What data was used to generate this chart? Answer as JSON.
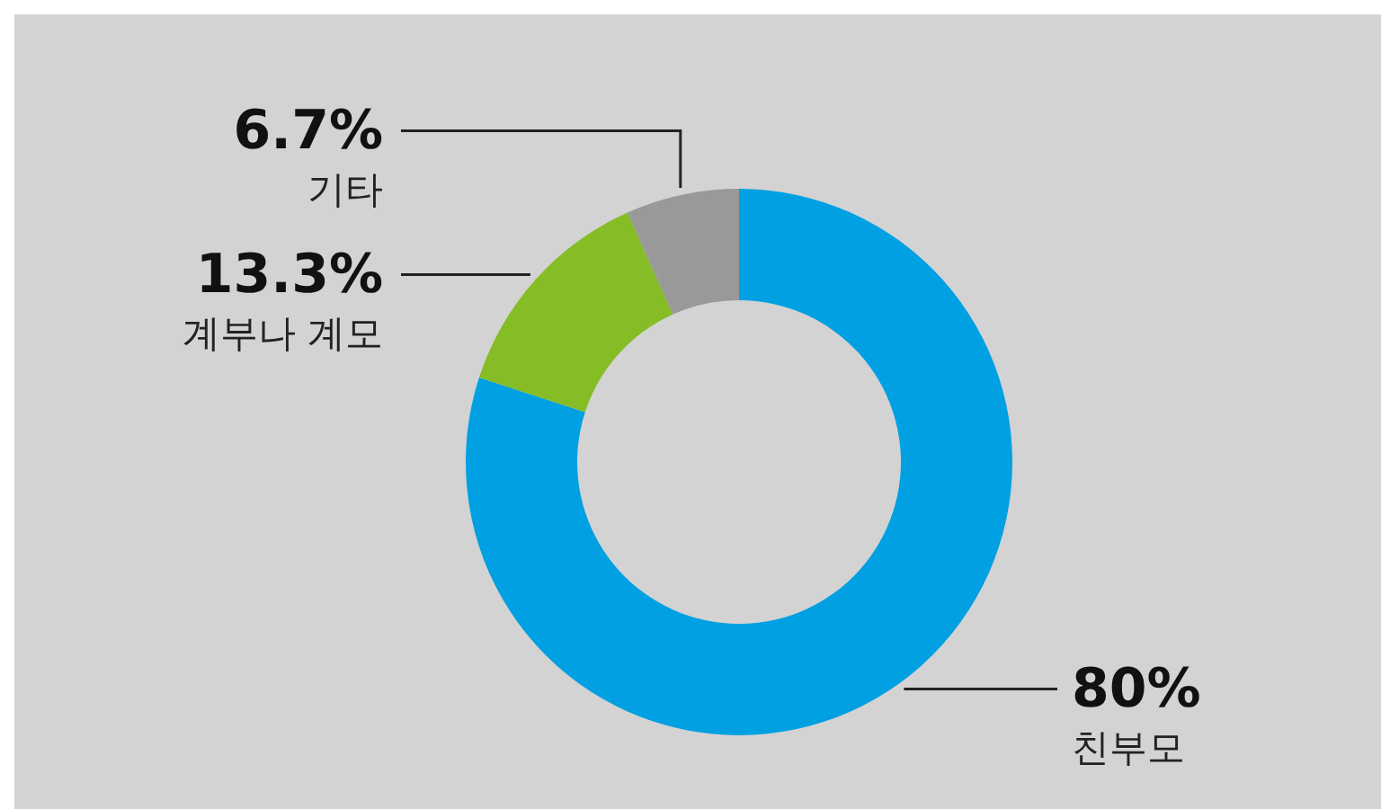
{
  "chart_data": {
    "type": "donut",
    "categories": [
      "친부모",
      "계부나 계모",
      "기타"
    ],
    "values": [
      80,
      13.3,
      6.7
    ],
    "value_labels": [
      "80%",
      "13.3%",
      "6.7%"
    ],
    "colors": [
      "#00a0e2",
      "#86bc25",
      "#999999"
    ]
  }
}
